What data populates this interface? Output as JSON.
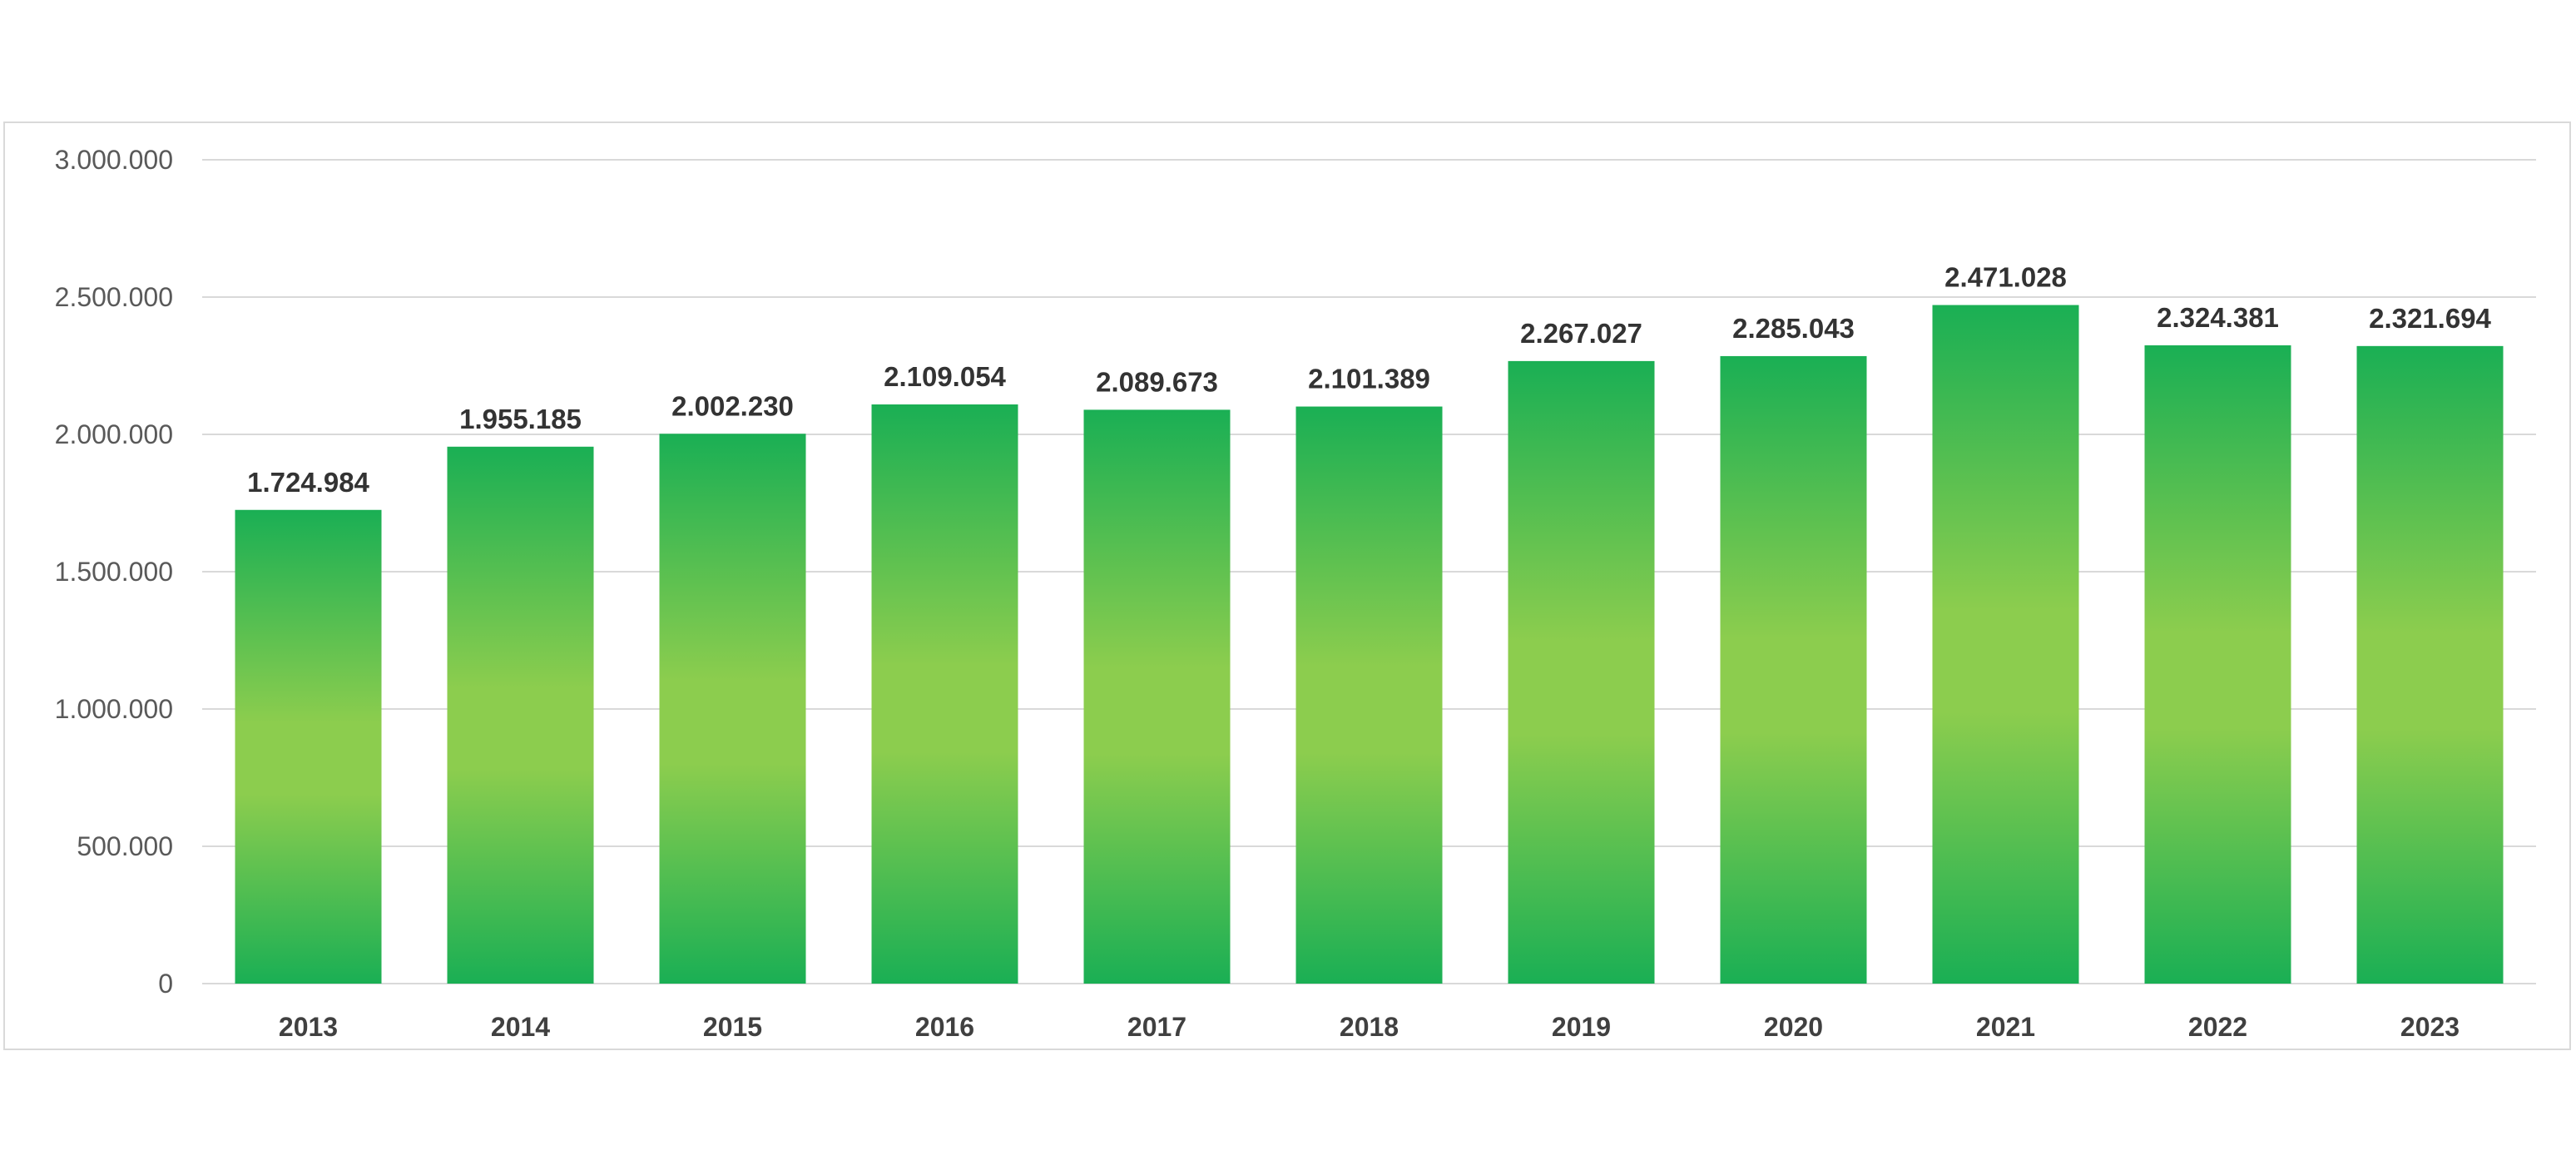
{
  "chart_data": {
    "type": "bar",
    "title": "",
    "xlabel": "",
    "ylabel": "",
    "categories": [
      "2013",
      "2014",
      "2015",
      "2016",
      "2017",
      "2018",
      "2019",
      "2020",
      "2021",
      "2022",
      "2023"
    ],
    "values": [
      1724984,
      1955185,
      2002230,
      2109054,
      2089673,
      2101389,
      2267027,
      2285043,
      2471028,
      2324381,
      2321694
    ],
    "data_labels": [
      "1.724.984",
      "1.955.185",
      "2.002.230",
      "2.109.054",
      "2.089.673",
      "2.101.389",
      "2.267.027",
      "2.285.043",
      "2.471.028",
      "2.324.381",
      "2.321.694"
    ],
    "ylim": [
      0,
      3000000
    ],
    "y_ticks": [
      0,
      500000,
      1000000,
      1500000,
      2000000,
      2500000,
      3000000
    ],
    "y_tick_labels": [
      "0",
      "500.000",
      "1.000.000",
      "1.500.000",
      "2.000.000",
      "2.500.000",
      "3.000.000"
    ],
    "grid": true,
    "legend": "none",
    "colors": {
      "bar_edge": "#1aaf54",
      "bar_center": "#8ccd4e",
      "grid": "#d9d9d9",
      "tick_text": "#595959",
      "label_text": "#333333"
    }
  }
}
